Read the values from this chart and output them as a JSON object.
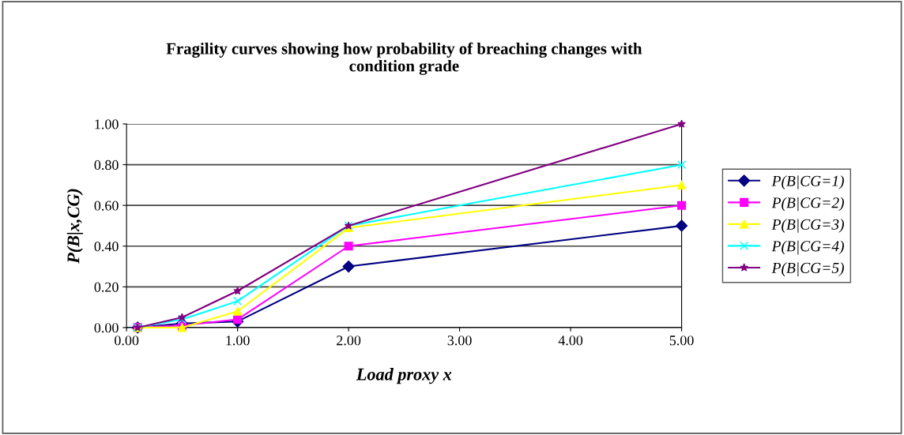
{
  "chart_data": {
    "type": "line",
    "title": "Fragility curves showing how probability of breaching changes with\ncondition grade",
    "xlabel": "Load proxy x",
    "ylabel": "P(B|x,CG)",
    "x": [
      0.1,
      0.5,
      1,
      2,
      5
    ],
    "series": [
      {
        "name": "P(B|CG=1)",
        "color": "#000080",
        "marker": "diamond",
        "values": [
          0,
          0.02,
          0.03,
          0.3,
          0.5
        ]
      },
      {
        "name": "P(B|CG=2)",
        "color": "#ff00ff",
        "marker": "square",
        "values": [
          0,
          0.01,
          0.04,
          0.4,
          0.6
        ]
      },
      {
        "name": "P(B|CG=3)",
        "color": "#ffff00",
        "marker": "triangle",
        "values": [
          0,
          0,
          0.08,
          0.49,
          0.7
        ]
      },
      {
        "name": "P(B|CG=4)",
        "color": "#00ffff",
        "marker": "cross",
        "values": [
          0,
          0.04,
          0.13,
          0.5,
          0.8
        ]
      },
      {
        "name": "P(B|CG=5)",
        "color": "#800080",
        "marker": "star",
        "values": [
          0,
          0.05,
          0.18,
          0.5,
          1.0
        ]
      }
    ],
    "xlim": [
      0,
      5
    ],
    "ylim": [
      0,
      1
    ],
    "xticks": [
      {
        "value": 0,
        "label": "0.00"
      },
      {
        "value": 1,
        "label": "1.00"
      },
      {
        "value": 2,
        "label": "2.00"
      },
      {
        "value": 3,
        "label": "3.00"
      },
      {
        "value": 4,
        "label": "4.00"
      },
      {
        "value": 5,
        "label": "5.00"
      }
    ],
    "yticks": [
      {
        "value": 0,
        "label": "0.00"
      },
      {
        "value": 0.2,
        "label": "0.20"
      },
      {
        "value": 0.4,
        "label": "0.40"
      },
      {
        "value": 0.6,
        "label": "0.60"
      },
      {
        "value": 0.8,
        "label": "0.80"
      },
      {
        "value": 1,
        "label": "1.00"
      }
    ],
    "grid": "y",
    "legend": "right",
    "line_style": "solid"
  }
}
